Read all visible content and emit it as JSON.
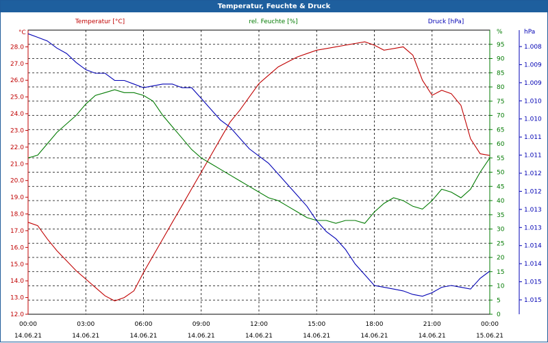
{
  "window": {
    "title": "Temperatur, Feuchte & Druck"
  },
  "colors": {
    "temperature": "#c00000",
    "humidity": "#007a00",
    "pressure": "#0000b4",
    "titlebar": "#1e5f9e",
    "grid": "#000000"
  },
  "chart_data": {
    "type": "line",
    "title": "Temperatur, Feuchte & Druck",
    "grid": true,
    "x_ticks": [
      {
        "time": "00:00",
        "date": "14.06.21"
      },
      {
        "time": "03:00",
        "date": "14.06.21"
      },
      {
        "time": "06:00",
        "date": "14.06.21"
      },
      {
        "time": "09:00",
        "date": "14.06.21"
      },
      {
        "time": "12:00",
        "date": "14.06.21"
      },
      {
        "time": "15:00",
        "date": "14.06.21"
      },
      {
        "time": "18:00",
        "date": "14.06.21"
      },
      {
        "time": "21:00",
        "date": "14.06.21"
      },
      {
        "time": "00:00",
        "date": "15.06.21"
      }
    ],
    "xlim": [
      "2021-06-14 00:00",
      "2021-06-15 00:00"
    ],
    "axes": {
      "temperature": {
        "label": "Temperatur [°C]",
        "unit": "°C",
        "ylim": [
          12.0,
          29.0
        ],
        "ticks": [
          "12.0",
          "13.0",
          "14.0",
          "15.0",
          "16.0",
          "17.0",
          "18.0",
          "19.0",
          "20.0",
          "21.0",
          "22.0",
          "23.0",
          "24.0",
          "25.0",
          "26.0",
          "27.0",
          "28.0"
        ]
      },
      "humidity": {
        "label": "rel. Feuchte [%]",
        "unit": "%",
        "ylim": [
          0,
          100
        ],
        "ticks": [
          "0",
          "5",
          "10",
          "15",
          "20",
          "25",
          "30",
          "35",
          "40",
          "45",
          "50",
          "55",
          "60",
          "65",
          "70",
          "75",
          "80",
          "85",
          "90",
          "95"
        ]
      },
      "pressure": {
        "label": "Druck [hPa]",
        "unit": "hPa",
        "ylim": [
          1007.6,
          1015.5
        ],
        "ticks": [
          "1.008",
          "1.009",
          "1.009",
          "1.010",
          "1.010",
          "1.011",
          "1.011",
          "1.012",
          "1.012",
          "1.013",
          "1.013",
          "1.014",
          "1.014",
          "1.015",
          "1.015"
        ]
      }
    },
    "series": [
      {
        "name": "Temperatur [°C]",
        "axis": "temperature",
        "x": [
          "2021-06-14 00:00",
          "2021-06-14 00:30",
          "2021-06-14 01:00",
          "2021-06-14 01:30",
          "2021-06-14 02:00",
          "2021-06-14 02:30",
          "2021-06-14 03:00",
          "2021-06-14 03:30",
          "2021-06-14 04:00",
          "2021-06-14 04:30",
          "2021-06-14 05:00",
          "2021-06-14 05:30",
          "2021-06-14 06:00",
          "2021-06-14 06:30",
          "2021-06-14 07:00",
          "2021-06-14 07:30",
          "2021-06-14 08:00",
          "2021-06-14 08:30",
          "2021-06-14 09:00",
          "2021-06-14 09:30",
          "2021-06-14 10:00",
          "2021-06-14 10:30",
          "2021-06-14 11:00",
          "2021-06-14 11:30",
          "2021-06-14 12:00",
          "2021-06-14 12:30",
          "2021-06-14 13:00",
          "2021-06-14 13:30",
          "2021-06-14 14:00",
          "2021-06-14 14:30",
          "2021-06-14 15:00",
          "2021-06-14 15:30",
          "2021-06-14 16:00",
          "2021-06-14 16:30",
          "2021-06-14 17:00",
          "2021-06-14 17:30",
          "2021-06-14 18:00",
          "2021-06-14 18:30",
          "2021-06-14 19:00",
          "2021-06-14 19:30",
          "2021-06-14 20:00",
          "2021-06-14 20:30",
          "2021-06-14 21:00",
          "2021-06-14 21:30",
          "2021-06-14 22:00",
          "2021-06-14 22:30",
          "2021-06-14 23:00",
          "2021-06-14 23:30",
          "2021-06-15 00:00"
        ],
        "values": [
          17.5,
          17.3,
          16.5,
          15.8,
          15.2,
          14.6,
          14.1,
          13.6,
          13.1,
          12.8,
          13.0,
          13.4,
          14.5,
          15.5,
          16.5,
          17.5,
          18.5,
          19.5,
          20.5,
          21.5,
          22.5,
          23.5,
          24.2,
          25.0,
          25.8,
          26.3,
          26.8,
          27.1,
          27.4,
          27.6,
          27.8,
          27.9,
          28.0,
          28.1,
          28.2,
          28.3,
          28.1,
          27.8,
          27.9,
          28.0,
          27.5,
          26.0,
          25.1,
          25.4,
          25.2,
          24.5,
          22.5,
          21.6,
          21.5
        ]
      },
      {
        "name": "rel. Feuchte [%]",
        "axis": "humidity",
        "x": [
          "2021-06-14 00:00",
          "2021-06-14 00:30",
          "2021-06-14 01:00",
          "2021-06-14 01:30",
          "2021-06-14 02:00",
          "2021-06-14 02:30",
          "2021-06-14 03:00",
          "2021-06-14 03:30",
          "2021-06-14 04:00",
          "2021-06-14 04:30",
          "2021-06-14 05:00",
          "2021-06-14 05:30",
          "2021-06-14 06:00",
          "2021-06-14 06:30",
          "2021-06-14 07:00",
          "2021-06-14 07:30",
          "2021-06-14 08:00",
          "2021-06-14 08:30",
          "2021-06-14 09:00",
          "2021-06-14 09:30",
          "2021-06-14 10:00",
          "2021-06-14 10:30",
          "2021-06-14 11:00",
          "2021-06-14 11:30",
          "2021-06-14 12:00",
          "2021-06-14 12:30",
          "2021-06-14 13:00",
          "2021-06-14 13:30",
          "2021-06-14 14:00",
          "2021-06-14 14:30",
          "2021-06-14 15:00",
          "2021-06-14 15:30",
          "2021-06-14 16:00",
          "2021-06-14 16:30",
          "2021-06-14 17:00",
          "2021-06-14 17:30",
          "2021-06-14 18:00",
          "2021-06-14 18:30",
          "2021-06-14 19:00",
          "2021-06-14 19:30",
          "2021-06-14 20:00",
          "2021-06-14 20:30",
          "2021-06-14 21:00",
          "2021-06-14 21:30",
          "2021-06-14 22:00",
          "2021-06-14 22:30",
          "2021-06-14 23:00",
          "2021-06-14 23:30",
          "2021-06-15 00:00"
        ],
        "values": [
          55,
          56,
          60,
          64,
          67,
          70,
          74,
          77,
          78,
          79,
          78,
          78,
          77,
          75,
          70,
          66,
          62,
          58,
          55,
          53,
          51,
          49,
          47,
          45,
          43,
          41,
          40,
          38,
          36,
          34,
          33,
          33,
          32,
          33,
          33,
          32,
          36,
          39,
          41,
          40,
          38,
          37,
          40,
          44,
          43,
          41,
          44,
          50,
          55
        ]
      },
      {
        "name": "Druck [hPa]",
        "axis": "pressure",
        "x": [
          "2021-06-14 00:00",
          "2021-06-14 00:30",
          "2021-06-14 01:00",
          "2021-06-14 01:30",
          "2021-06-14 02:00",
          "2021-06-14 02:30",
          "2021-06-14 03:00",
          "2021-06-14 03:30",
          "2021-06-14 04:00",
          "2021-06-14 04:30",
          "2021-06-14 05:00",
          "2021-06-14 05:30",
          "2021-06-14 06:00",
          "2021-06-14 06:30",
          "2021-06-14 07:00",
          "2021-06-14 07:30",
          "2021-06-14 08:00",
          "2021-06-14 08:30",
          "2021-06-14 09:00",
          "2021-06-14 09:30",
          "2021-06-14 10:00",
          "2021-06-14 10:30",
          "2021-06-14 11:00",
          "2021-06-14 11:30",
          "2021-06-14 12:00",
          "2021-06-14 12:30",
          "2021-06-14 13:00",
          "2021-06-14 13:30",
          "2021-06-14 14:00",
          "2021-06-14 14:30",
          "2021-06-14 15:00",
          "2021-06-14 15:30",
          "2021-06-14 16:00",
          "2021-06-14 16:30",
          "2021-06-14 17:00",
          "2021-06-14 17:30",
          "2021-06-14 18:00",
          "2021-06-14 18:30",
          "2021-06-14 19:00",
          "2021-06-14 19:30",
          "2021-06-14 20:00",
          "2021-06-14 20:30",
          "2021-06-14 21:00",
          "2021-06-14 21:30",
          "2021-06-14 22:00",
          "2021-06-14 22:30",
          "2021-06-14 23:00",
          "2021-06-14 23:30",
          "2021-06-15 00:00"
        ],
        "values": [
          1015.4,
          1015.3,
          1015.2,
          1015.0,
          1014.85,
          1014.6,
          1014.4,
          1014.3,
          1014.3,
          1014.1,
          1014.1,
          1014.0,
          1013.9,
          1013.95,
          1014.0,
          1014.0,
          1013.9,
          1013.9,
          1013.6,
          1013.3,
          1013.0,
          1012.8,
          1012.5,
          1012.2,
          1012.0,
          1011.8,
          1011.5,
          1011.2,
          1010.9,
          1010.6,
          1010.2,
          1009.9,
          1009.7,
          1009.4,
          1009.0,
          1008.7,
          1008.4,
          1008.35,
          1008.3,
          1008.25,
          1008.15,
          1008.1,
          1008.2,
          1008.35,
          1008.4,
          1008.35,
          1008.3,
          1008.6,
          1008.8
        ]
      }
    ]
  }
}
